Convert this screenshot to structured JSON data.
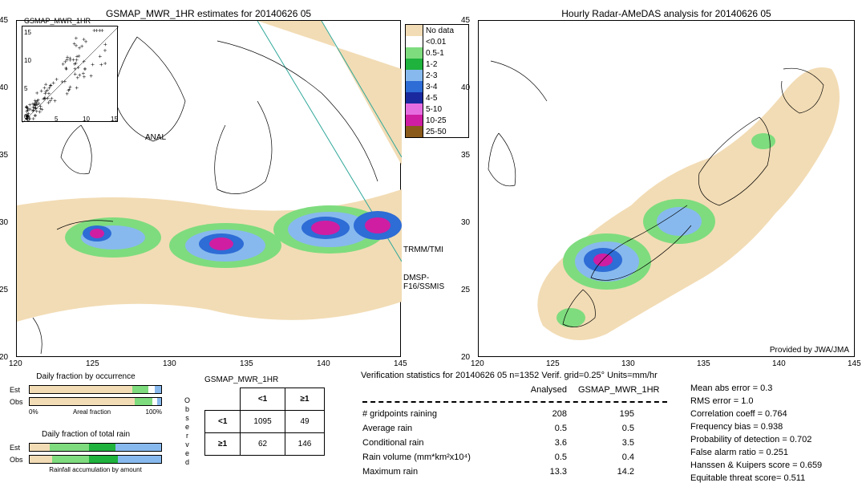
{
  "left_map": {
    "title": "GSMAP_MWR_1HR estimates for 20140626 05",
    "xticks": [
      "120",
      "125",
      "130",
      "135",
      "140",
      "145"
    ],
    "yticks": [
      "20",
      "25",
      "30",
      "35",
      "40",
      "45"
    ],
    "swaths": [
      "TRMM/TMI",
      "DMSP-F16/SSMIS"
    ],
    "anal_label": "ANAL",
    "inset_title": "GSMAP_MWR_1HR",
    "inset_xticks": [
      "0",
      "5",
      "10",
      "15"
    ],
    "inset_yticks": [
      "0",
      "5",
      "10",
      "15"
    ]
  },
  "right_map": {
    "title": "Hourly Radar-AMeDAS analysis for 20140626 05",
    "xticks": [
      "120",
      "125",
      "130",
      "135",
      "140",
      "145"
    ],
    "yticks": [
      "20",
      "25",
      "30",
      "35",
      "40",
      "45"
    ],
    "attribution": "Provided by JWA/JMA"
  },
  "legend": {
    "items": [
      {
        "label": "No data",
        "color": "#f2dcb5"
      },
      {
        "label": "<0.01",
        "color": "#ffffff"
      },
      {
        "label": "0.5-1",
        "color": "#7edc7e"
      },
      {
        "label": "1-2",
        "color": "#1fb23d"
      },
      {
        "label": "2-3",
        "color": "#87b9ee"
      },
      {
        "label": "3-4",
        "color": "#2e6cd6"
      },
      {
        "label": "4-5",
        "color": "#1a2a9e"
      },
      {
        "label": "5-10",
        "color": "#e66de0"
      },
      {
        "label": "10-25",
        "color": "#cf1ea2"
      },
      {
        "label": "25-50",
        "color": "#8a5a1a"
      }
    ]
  },
  "occurrence_bars": {
    "title": "Daily fraction by occurrence",
    "rows": [
      {
        "label": "Est",
        "segs": [
          {
            "c": "#f2dcb5",
            "w": 78
          },
          {
            "c": "#7edc7e",
            "w": 12
          },
          {
            "c": "#ffffff",
            "w": 5
          },
          {
            "c": "#87b9ee",
            "w": 5
          }
        ]
      },
      {
        "label": "Obs",
        "segs": [
          {
            "c": "#f2dcb5",
            "w": 80
          },
          {
            "c": "#7edc7e",
            "w": 13
          },
          {
            "c": "#ffffff",
            "w": 4
          },
          {
            "c": "#87b9ee",
            "w": 3
          }
        ]
      }
    ],
    "axis_title": "Areal fraction",
    "axis_left": "0%",
    "axis_right": "100%"
  },
  "total_bars": {
    "title": "Daily fraction of total rain",
    "rows": [
      {
        "label": "Est",
        "segs": [
          {
            "c": "#f2dcb5",
            "w": 15
          },
          {
            "c": "#7edc7e",
            "w": 30
          },
          {
            "c": "#1fb23d",
            "w": 20
          },
          {
            "c": "#87b9ee",
            "w": 35
          }
        ]
      },
      {
        "label": "Obs",
        "segs": [
          {
            "c": "#f2dcb5",
            "w": 17
          },
          {
            "c": "#7edc7e",
            "w": 28
          },
          {
            "c": "#1fb23d",
            "w": 22
          },
          {
            "c": "#87b9ee",
            "w": 33
          }
        ]
      }
    ],
    "axis_title": "Rainfall accumulation by amount"
  },
  "contingency": {
    "header": "GSMAP_MWR_1HR",
    "col1": "<1",
    "col2": "≥1",
    "row1": "<1",
    "row2": "≥1",
    "cells": [
      [
        "1095",
        "49"
      ],
      [
        "62",
        "146"
      ]
    ],
    "side_label": "Observed"
  },
  "verif": {
    "header": "Verification statistics for 20140626 05  n=1352  Verif. grid=0.25°  Units=mm/hr",
    "col_labels": [
      "Analysed",
      "GSMAP_MWR_1HR"
    ],
    "rows": [
      {
        "label": "# gridpoints raining",
        "a": "208",
        "b": "195"
      },
      {
        "label": "Average rain",
        "a": "0.5",
        "b": "0.5"
      },
      {
        "label": "Conditional rain",
        "a": "3.6",
        "b": "3.5"
      },
      {
        "label": "Rain volume (mm*km²x10⁴)",
        "a": "0.5",
        "b": "0.4"
      },
      {
        "label": "Maximum rain",
        "a": "13.3",
        "b": "14.2"
      }
    ],
    "scores": [
      "Mean abs error = 0.3",
      "RMS error = 1.0",
      "Correlation coeff = 0.764",
      "Frequency bias = 0.938",
      "Probability of detection = 0.702",
      "False alarm ratio = 0.251",
      "Hanssen & Kuipers score = 0.659",
      "Equitable threat score= 0.511"
    ]
  },
  "colors": {
    "nodata": "#f2dcb5",
    "light_green": "#7edc7e",
    "green": "#1fb23d",
    "light_blue": "#87b9ee",
    "blue": "#2e6cd6",
    "navy": "#1a2a9e",
    "pink": "#e66de0",
    "magenta": "#cf1ea2",
    "brown": "#8a5a1a",
    "teal_line": "#2fa89a"
  }
}
